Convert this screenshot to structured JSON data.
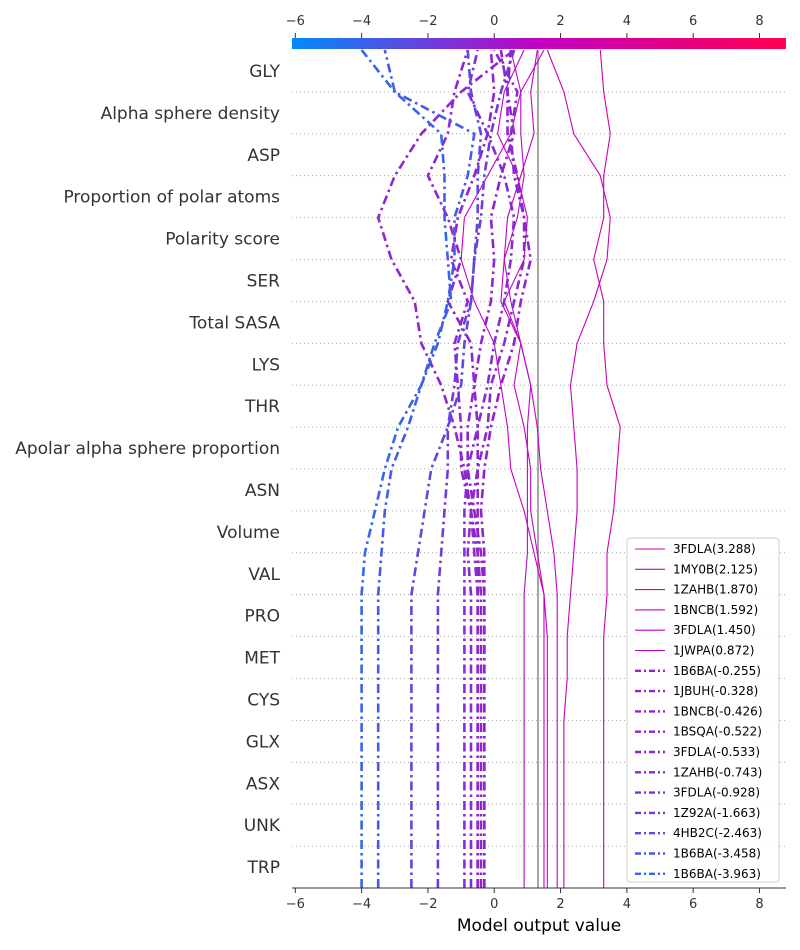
{
  "chart_data": {
    "type": "line",
    "xlabel": "Model output value",
    "ylabel": "",
    "xlim": [
      -6.1,
      8.8
    ],
    "xticks": [
      "−6",
      "−4",
      "−2",
      "0",
      "2",
      "4",
      "6",
      "8"
    ],
    "xtick_values": [
      -6,
      -4,
      -2,
      0,
      2,
      4,
      6,
      8
    ],
    "base_value": 1.32,
    "features": [
      "GLY",
      "Alpha sphere density",
      "ASP",
      "Proportion of polar atoms",
      "Polarity score",
      "SER",
      "Total SASA",
      "LYS",
      "THR",
      "Apolar alpha sphere proportion",
      "ASN",
      "Volume",
      "VAL",
      "PRO",
      "MET",
      "CYS",
      "GLX",
      "ASX",
      "UNK",
      "TRP"
    ],
    "colorbar": {
      "min": -6,
      "max": 9,
      "colors": [
        "#008bfb",
        "#c300c3",
        "#ff0052"
      ]
    },
    "legend_position": "lower right",
    "series": [
      {
        "name": "3FDLA(3.288)",
        "final": 3.288,
        "style": "solid",
        "path": [
          3.3,
          3.3,
          3.3,
          3.3,
          3.3,
          3.3,
          3.3,
          3.4,
          3.4,
          3.6,
          3.7,
          3.8,
          3.4,
          3.3,
          3.3,
          3.0,
          3.3,
          3.3,
          3.5,
          3.3,
          3.2
        ]
      },
      {
        "name": "1MY0B(2.125)",
        "final": 2.125,
        "style": "solid",
        "path": [
          2.1,
          2.1,
          2.1,
          2.1,
          2.1,
          2.2,
          2.2,
          2.3,
          2.4,
          2.5,
          2.5,
          2.4,
          2.3,
          2.5,
          3.0,
          3.4,
          3.5,
          3.2,
          2.4,
          2.1,
          1.6
        ]
      },
      {
        "name": "1ZAHB(1.870)",
        "final": 1.87,
        "style": "solid",
        "path": [
          1.9,
          1.9,
          1.9,
          1.9,
          1.9,
          1.9,
          1.9,
          1.9,
          1.8,
          1.6,
          1.4,
          1.3,
          1.1,
          0.8,
          0.2,
          0.3,
          0.4,
          0.8,
          1.2,
          1.1,
          1.3
        ]
      },
      {
        "name": "1BNCB(1.592)",
        "final": 1.592,
        "style": "solid",
        "path": [
          1.6,
          1.6,
          1.6,
          1.6,
          1.6,
          1.6,
          1.6,
          1.5,
          1.2,
          0.9,
          0.5,
          0.4,
          0.2,
          0.0,
          -0.6,
          -1.0,
          -0.9,
          -0.2,
          0.5,
          0.8,
          1.5
        ]
      },
      {
        "name": "3FDLA(1.450)",
        "final": 1.45,
        "style": "solid",
        "path": [
          1.5,
          1.5,
          1.5,
          1.5,
          1.5,
          1.5,
          1.5,
          1.5,
          1.3,
          1.1,
          1.1,
          0.9,
          0.6,
          0.8,
          0.3,
          0.9,
          1.0,
          0.7,
          0.1,
          0.3,
          0.9
        ]
      },
      {
        "name": "1JWPA(0.872)",
        "final": 0.872,
        "style": "solid",
        "path": [
          0.9,
          0.9,
          0.9,
          0.9,
          0.9,
          0.9,
          0.9,
          0.9,
          1.0,
          1.0,
          1.0,
          1.0,
          1.1,
          0.8,
          0.5,
          0.3,
          0.7,
          0.9,
          0.8,
          0.8,
          0.5
        ]
      },
      {
        "name": "1B6BA(-0.255)",
        "final": -0.255,
        "style": "dashdot",
        "path": [
          -0.3,
          -0.3,
          -0.3,
          -0.3,
          -0.3,
          -0.3,
          -0.3,
          -0.3,
          -0.3,
          -0.4,
          -0.3,
          -0.1,
          0.2,
          0.6,
          0.8,
          1.1,
          0.9,
          0.7,
          0.4,
          0.4,
          0.5
        ]
      },
      {
        "name": "1JBUH(-0.328)",
        "final": -0.328,
        "style": "dashdot",
        "path": [
          -0.3,
          -0.3,
          -0.3,
          -0.3,
          -0.3,
          -0.3,
          -0.3,
          -0.3,
          -0.4,
          -0.6,
          -0.8,
          -0.8,
          -0.6,
          -0.4,
          -0.1,
          0.0,
          -0.1,
          0.2,
          0.6,
          0.4,
          0.2
        ]
      },
      {
        "name": "1BNCB(-0.426)",
        "final": -0.426,
        "style": "dashdot",
        "path": [
          -0.4,
          -0.4,
          -0.4,
          -0.4,
          -0.4,
          -0.4,
          -0.4,
          -0.4,
          -0.5,
          -0.7,
          -1.0,
          -1.0,
          -1.1,
          -1.2,
          -0.8,
          -1.3,
          -1.1,
          -0.6,
          -0.2,
          0.0,
          -0.1
        ]
      },
      {
        "name": "1BSQA(-0.522)",
        "final": -0.522,
        "style": "dashdot",
        "path": [
          -0.5,
          -0.5,
          -0.5,
          -0.5,
          -0.5,
          -0.5,
          -0.5,
          -0.5,
          -0.5,
          -0.5,
          -0.5,
          -0.5,
          -0.6,
          -0.7,
          -1.4,
          -1.0,
          -1.4,
          -2.0,
          -1.4,
          -1.2,
          -0.8
        ]
      },
      {
        "name": "3FDLA(-0.533)",
        "final": -0.533,
        "style": "dashdot",
        "path": [
          -0.5,
          -0.5,
          -0.5,
          -0.5,
          -0.5,
          -0.5,
          -0.5,
          -0.5,
          -0.6,
          -0.7,
          -0.9,
          -1.2,
          -1.6,
          -2.2,
          -2.4,
          -3.1,
          -3.5,
          -3.0,
          -2.2,
          -1.0,
          0.6
        ]
      },
      {
        "name": "1ZAHB(-0.743)",
        "final": -0.743,
        "style": "dashdot",
        "path": [
          -0.7,
          -0.7,
          -0.7,
          -0.7,
          -0.7,
          -0.7,
          -0.7,
          -0.7,
          -0.8,
          -0.7,
          -0.5,
          -0.2,
          -0.1,
          0.3,
          0.6,
          0.9,
          0.9,
          0.6,
          0.5,
          0.7,
          0.0
        ]
      },
      {
        "name": "3FDLA(-0.928)",
        "final": -0.928,
        "style": "dashdot",
        "path": [
          -0.9,
          -0.9,
          -0.9,
          -0.9,
          -0.9,
          -0.9,
          -0.9,
          -0.9,
          -0.9,
          -0.9,
          -0.8,
          -0.5,
          -0.2,
          0.0,
          0.3,
          0.5,
          0.6,
          0.3,
          -0.2,
          -0.8,
          -0.5
        ]
      },
      {
        "name": "1Z92A(-1.663)",
        "final": -1.663,
        "style": "dashdot",
        "path": [
          -1.7,
          -1.7,
          -1.7,
          -1.7,
          -1.7,
          -1.7,
          -1.7,
          -1.7,
          -1.6,
          -1.5,
          -1.4,
          -1.4,
          -1.2,
          -1.1,
          -0.7,
          -0.6,
          -0.4,
          -0.3,
          -0.1,
          0.2,
          0.6
        ]
      },
      {
        "name": "4HB2C(-2.463)",
        "final": -2.463,
        "style": "dashdot",
        "path": [
          -2.5,
          -2.5,
          -2.5,
          -2.5,
          -2.5,
          -2.5,
          -2.5,
          -2.5,
          -2.3,
          -2.1,
          -1.9,
          -1.4,
          -1.0,
          -0.9,
          -0.7,
          -0.6,
          -0.5,
          -0.5,
          -0.4,
          -0.7,
          -0.8
        ]
      },
      {
        "name": "1B6BA(-3.458)",
        "final": -3.458,
        "style": "dashdot",
        "path": [
          -3.5,
          -3.5,
          -3.5,
          -3.5,
          -3.5,
          -3.5,
          -3.5,
          -3.5,
          -3.4,
          -3.3,
          -3.1,
          -2.6,
          -2.2,
          -1.7,
          -1.4,
          -1.2,
          -1.2,
          -0.8,
          -0.6,
          -3.0,
          -3.3
        ]
      },
      {
        "name": "1B6BA(-3.963)",
        "final": -3.963,
        "style": "dashdot",
        "path": [
          -4.0,
          -4.0,
          -4.0,
          -4.0,
          -4.0,
          -4.0,
          -4.0,
          -4.0,
          -3.9,
          -3.6,
          -3.3,
          -2.9,
          -2.2,
          -1.8,
          -1.3,
          -1.4,
          -1.5,
          -1.5,
          -1.6,
          -3.0,
          -4.0
        ]
      }
    ]
  }
}
